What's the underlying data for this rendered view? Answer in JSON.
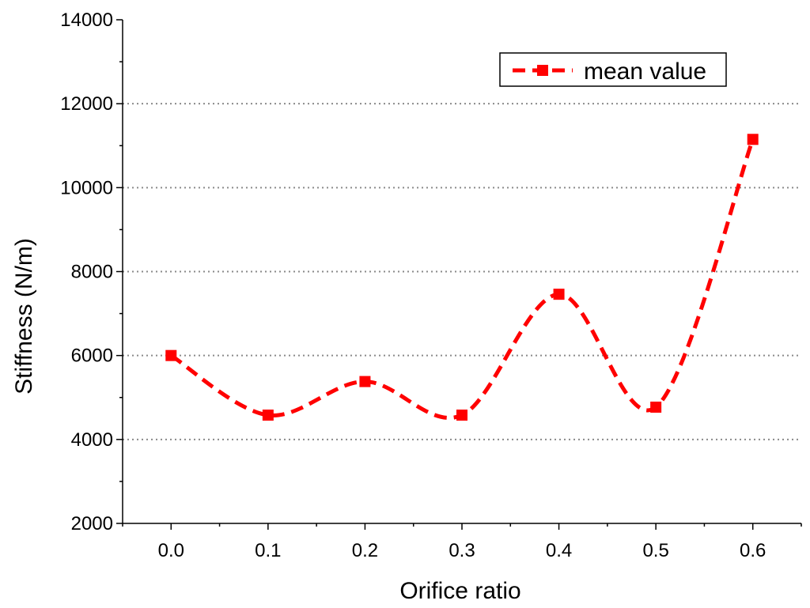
{
  "chart_data": {
    "type": "line",
    "title": "",
    "xlabel": "Orifice ratio",
    "ylabel": "Stiffness (N/m)",
    "xlim": [
      -0.05,
      0.65
    ],
    "ylim": [
      2000,
      14000
    ],
    "x_ticks": [
      "0.0",
      "0.1",
      "0.2",
      "0.3",
      "0.4",
      "0.5",
      "0.6"
    ],
    "y_ticks": [
      "2000",
      "4000",
      "6000",
      "8000",
      "10000",
      "12000",
      "14000"
    ],
    "grid": "horizontal-dotted",
    "legend_position": "top-right",
    "series": [
      {
        "name": "mean value",
        "color": "#ff0000",
        "line_style": "dashed-smooth",
        "marker": "square",
        "x": [
          0.0,
          0.1,
          0.2,
          0.3,
          0.4,
          0.5,
          0.6
        ],
        "y": [
          6000,
          4580,
          5380,
          4580,
          7460,
          4770,
          11150
        ]
      }
    ]
  }
}
